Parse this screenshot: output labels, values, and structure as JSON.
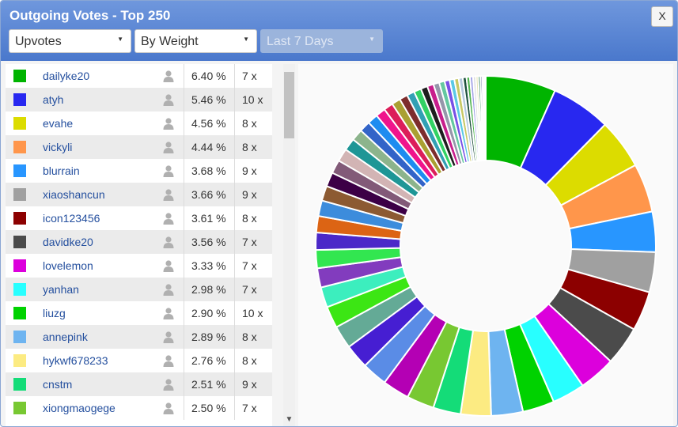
{
  "window": {
    "title": "Outgoing Votes - Top 250",
    "close_label": "X"
  },
  "filters": {
    "vote_type": "Upvotes",
    "sort": "By Weight",
    "period": "Last 7 Days"
  },
  "voters": [
    {
      "name": "dailyke20",
      "pct": "6.40 %",
      "count": "7 x",
      "color": "#00b400"
    },
    {
      "name": "atyh",
      "pct": "5.46 %",
      "count": "10 x",
      "color": "#2828f0"
    },
    {
      "name": "evahe",
      "pct": "4.56 %",
      "count": "8 x",
      "color": "#dcdc00"
    },
    {
      "name": "vickyli",
      "pct": "4.44 %",
      "count": "8 x",
      "color": "#ff964b"
    },
    {
      "name": "blurrain",
      "pct": "3.68 %",
      "count": "9 x",
      "color": "#2896ff"
    },
    {
      "name": "xiaoshancun",
      "pct": "3.66 %",
      "count": "9 x",
      "color": "#a0a0a0"
    },
    {
      "name": "icon123456",
      "pct": "3.61 %",
      "count": "8 x",
      "color": "#8c0000"
    },
    {
      "name": "davidke20",
      "pct": "3.56 %",
      "count": "7 x",
      "color": "#4b4b4b"
    },
    {
      "name": "lovelemon",
      "pct": "3.33 %",
      "count": "7 x",
      "color": "#dc00dc"
    },
    {
      "name": "yanhan",
      "pct": "2.98 %",
      "count": "7 x",
      "color": "#28ffff"
    },
    {
      "name": "liuzg",
      "pct": "2.90 %",
      "count": "10 x",
      "color": "#00d200"
    },
    {
      "name": "annepink",
      "pct": "2.89 %",
      "count": "8 x",
      "color": "#6eb4f0"
    },
    {
      "name": "hykwf678233",
      "pct": "2.76 %",
      "count": "8 x",
      "color": "#fceb82"
    },
    {
      "name": "cnstm",
      "pct": "2.51 %",
      "count": "9 x",
      "color": "#14dc78"
    },
    {
      "name": "xiongmaogege",
      "pct": "2.50 %",
      "count": "7 x",
      "color": "#78c832"
    }
  ],
  "chart_data": {
    "type": "pie",
    "donut": true,
    "labels": [
      "dailyke20",
      "atyh",
      "evahe",
      "vickyli",
      "blurrain",
      "xiaoshancun",
      "icon123456",
      "davidke20",
      "lovelemon",
      "yanhan",
      "liuzg",
      "annepink",
      "hykwf678233",
      "cnstm",
      "xiongmaogege"
    ],
    "values": [
      6.4,
      5.46,
      4.56,
      4.44,
      3.68,
      3.66,
      3.61,
      3.56,
      3.33,
      2.98,
      2.9,
      2.89,
      2.76,
      2.51,
      2.5
    ],
    "colors": [
      "#00b400",
      "#2828f0",
      "#dcdc00",
      "#ff964b",
      "#2896ff",
      "#a0a0a0",
      "#8c0000",
      "#4b4b4b",
      "#dc00dc",
      "#28ffff",
      "#00d200",
      "#6eb4f0",
      "#fceb82",
      "#14dc78",
      "#78c832"
    ],
    "remaining_values": [
      2.45,
      2.32,
      2.22,
      2.1,
      1.98,
      1.85,
      1.75,
      1.66,
      1.57,
      1.5,
      1.42,
      1.36,
      1.3,
      1.24,
      1.18,
      1.12,
      1.06,
      1.0,
      0.95,
      0.9,
      0.85,
      0.8,
      0.75,
      0.7,
      0.66,
      0.62,
      0.58,
      0.54,
      0.5,
      0.46,
      0.43,
      0.4,
      0.37,
      0.34,
      0.31,
      0.28,
      0.25,
      0.22,
      0.2,
      0.18,
      0.16,
      0.14
    ],
    "remaining_colors": [
      "#b400b4",
      "#5a8ce6",
      "#461ed2",
      "#64aa96",
      "#3ce614",
      "#3ceebe",
      "#823cbe",
      "#32e650",
      "#4b28c8",
      "#dc6414",
      "#3c8cdc",
      "#8c5a32",
      "#3c0046",
      "#825a78",
      "#d2b4b4",
      "#1e9696",
      "#8cb48c",
      "#3264c8",
      "#1e8cf0",
      "#f0148c",
      "#dc1e5a",
      "#aaa032",
      "#7d2d2d",
      "#32a0b4",
      "#32d264",
      "#1e1e1e",
      "#c81e8c",
      "#9696aa",
      "#64c8a0",
      "#7850e6",
      "#5ac8e6",
      "#c8c864",
      "#b4c8dc",
      "#1e503c",
      "#50b450",
      "#a0a0e6",
      "#dcdcdc",
      "#e6e6b4",
      "#0a6e3c",
      "#646496",
      "#ffc8ff",
      "#c8a0c8"
    ]
  }
}
